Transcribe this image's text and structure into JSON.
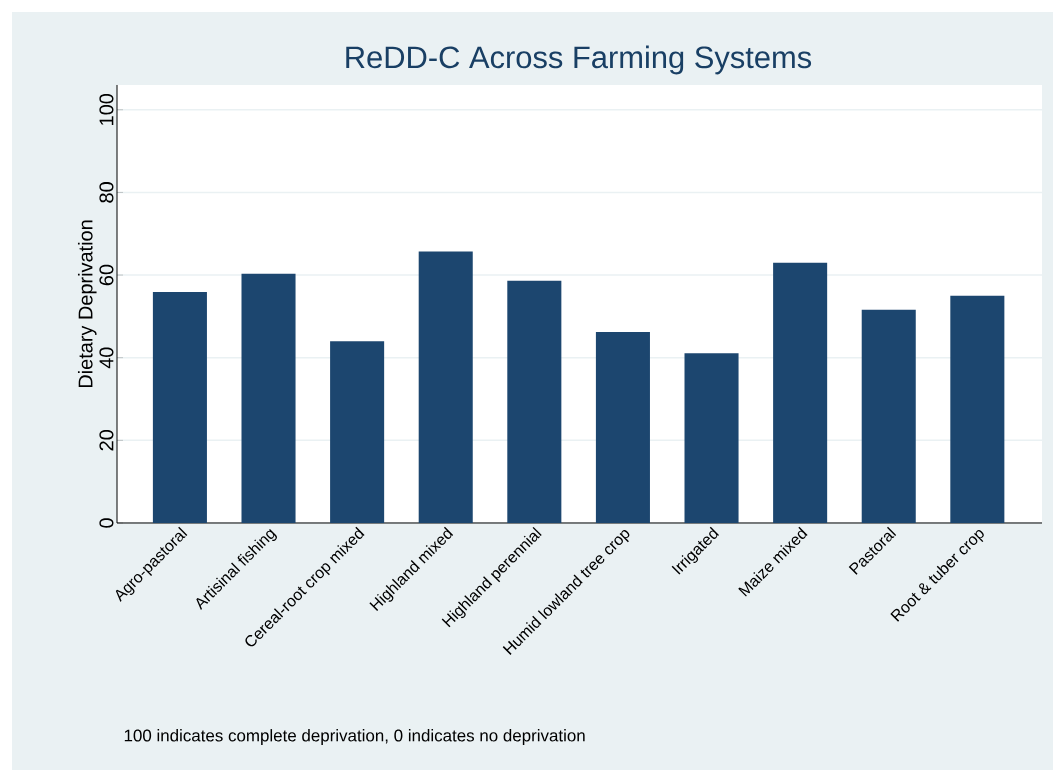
{
  "chart_data": {
    "type": "bar",
    "title": "ReDD-C Across Farming Systems",
    "ylabel": "Dietary Deprivation",
    "categories": [
      "Agro-pastoral",
      "Artisinal fishing",
      "Cereal-root crop mixed",
      "Highland mixed",
      "Highland perennial",
      "Humid lowland tree crop",
      "Irrigated",
      "Maize mixed",
      "Pastoral",
      "Root & tuber crop"
    ],
    "values": [
      55.9,
      60.3,
      44.0,
      65.7,
      58.6,
      46.2,
      41.1,
      63.0,
      51.6,
      55.0
    ],
    "color": "#1c466f",
    "ylim": [
      0,
      106
    ],
    "yticks": [
      0,
      20,
      40,
      60,
      80,
      100
    ],
    "grid": "y",
    "annotations": [
      "100 indicates complete deprivation, 0 indicates no deprivation"
    ]
  }
}
